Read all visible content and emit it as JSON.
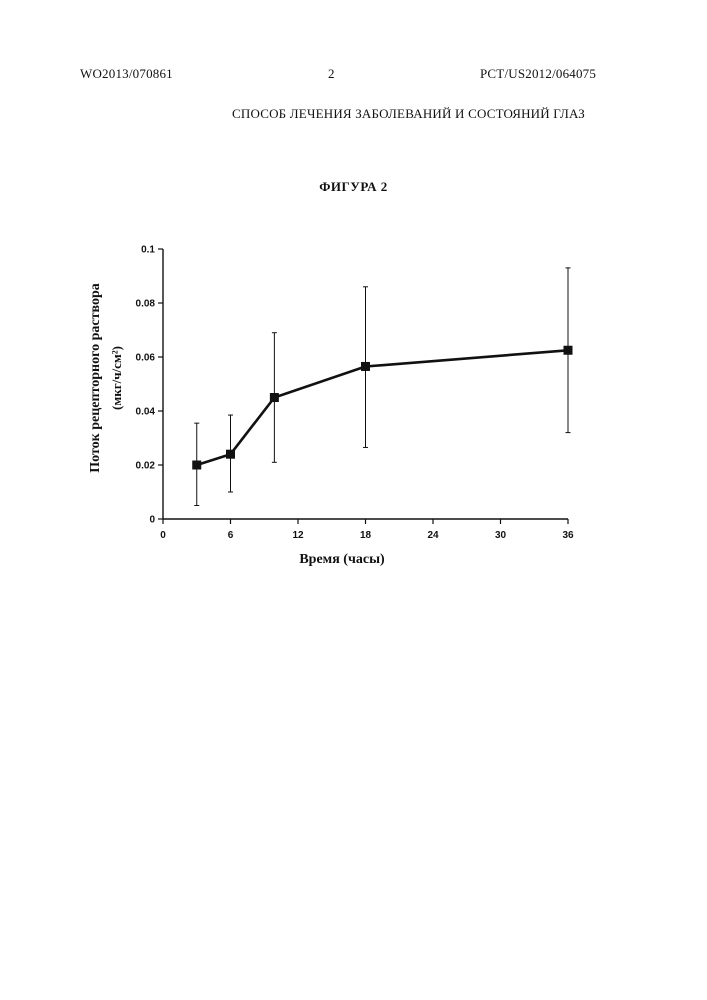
{
  "header": {
    "left": "WO2013/070861",
    "page": "2",
    "right": "PCT/US2012/064075"
  },
  "document_title": "СПОСОБ ЛЕЧЕНИЯ ЗАБОЛЕВАНИЙ И СОСТОЯНИЙ ГЛАЗ",
  "figure_caption": "ФИГУРА 2",
  "chart_data": {
    "type": "line",
    "xlabel": "Время (часы)",
    "ylabel": "Поток рецепторного раствора",
    "ylabel_units": "(мкг/ч/см²)",
    "x_tick_labels": [
      "0",
      "6",
      "12",
      "18",
      "24",
      "30",
      "36"
    ],
    "y_tick_labels": [
      "0",
      "0.02",
      "0.04",
      "0.06",
      "0.08",
      "0.1"
    ],
    "y_ticks": [
      0,
      0.02,
      0.04,
      0.06,
      0.08,
      0.1
    ],
    "ylim": [
      0,
      0.1
    ],
    "grid": false,
    "legend": "none",
    "marker": "square",
    "color": "#111111",
    "points": [
      {
        "x_pos": 0.5,
        "y": 0.02,
        "err_low": 0.005,
        "err_high": 0.0355
      },
      {
        "x_pos": 1.0,
        "y": 0.024,
        "err_low": 0.01,
        "err_high": 0.0385
      },
      {
        "x_pos": 1.65,
        "y": 0.045,
        "err_low": 0.021,
        "err_high": 0.069
      },
      {
        "x_pos": 3.0,
        "y": 0.0565,
        "err_low": 0.0265,
        "err_high": 0.086
      },
      {
        "x_pos": 6.0,
        "y": 0.0625,
        "err_low": 0.032,
        "err_high": 0.093
      }
    ]
  }
}
